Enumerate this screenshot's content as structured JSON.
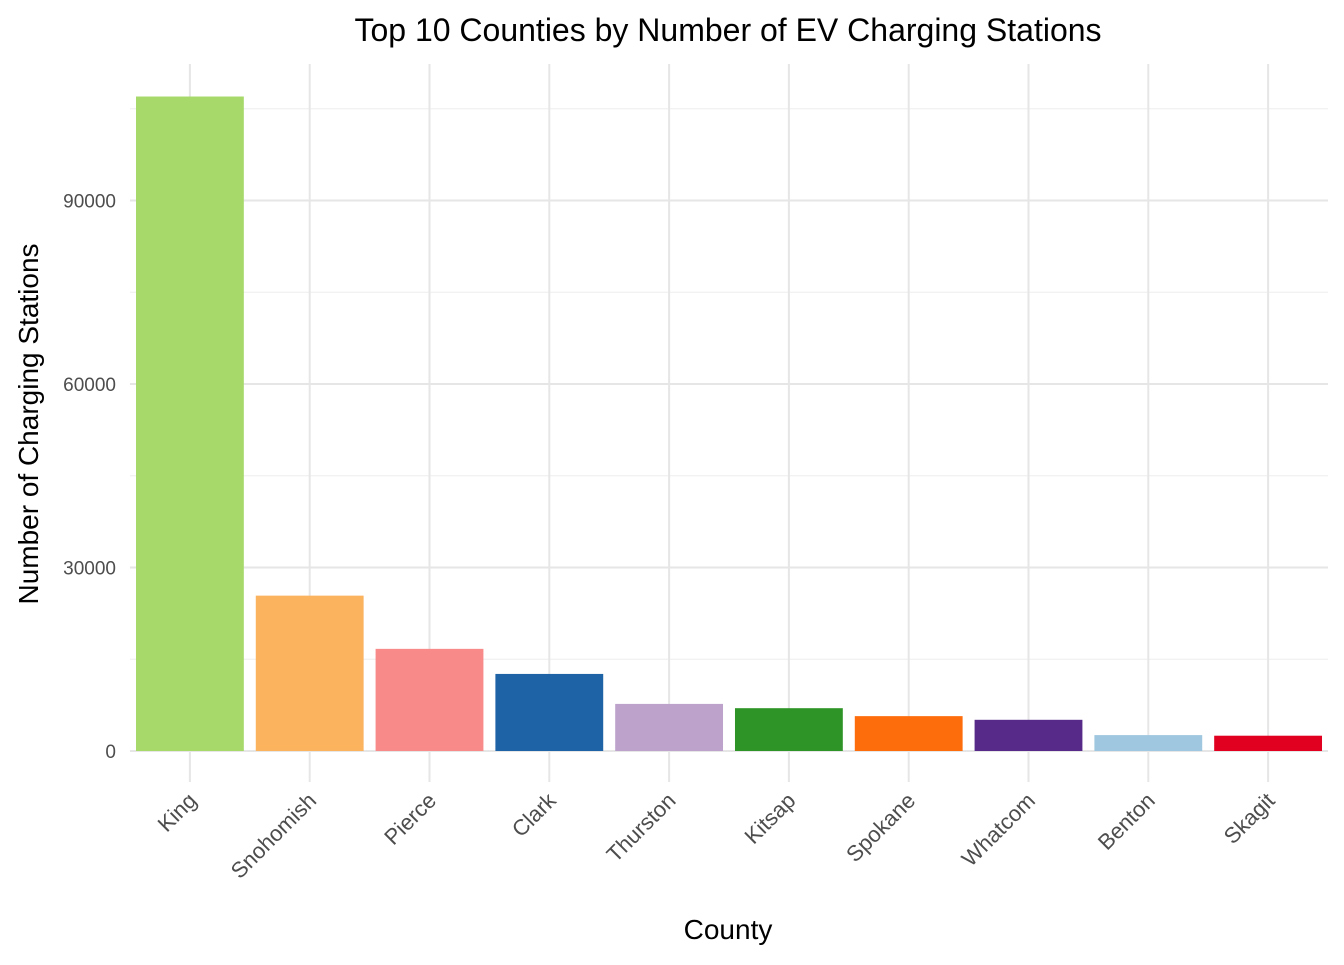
{
  "chart_data": {
    "type": "bar",
    "title": "Top 10 Counties by Number of EV Charging Stations",
    "xlabel": "County",
    "ylabel": "Number of Charging Stations",
    "categories": [
      "King",
      "Snohomish",
      "Pierce",
      "Clark",
      "Thurston",
      "Kitsap",
      "Spokane",
      "Whatcom",
      "Benton",
      "Skagit"
    ],
    "values": [
      107000,
      25400,
      16700,
      12600,
      7700,
      7000,
      5700,
      5100,
      2600,
      2500
    ],
    "colors": [
      "#a6d96a",
      "#fbb35e",
      "#f88a89",
      "#1f63a7",
      "#bda2cc",
      "#2e9427",
      "#fe6d0c",
      "#572a8a",
      "#9fc8e0",
      "#e1001f"
    ],
    "ylim": [
      0,
      111000
    ],
    "yticks": [
      0,
      30000,
      60000,
      90000
    ],
    "ytick_labels": [
      "0",
      "30000",
      "60000",
      "90000"
    ],
    "grid": true,
    "legend": "none"
  }
}
